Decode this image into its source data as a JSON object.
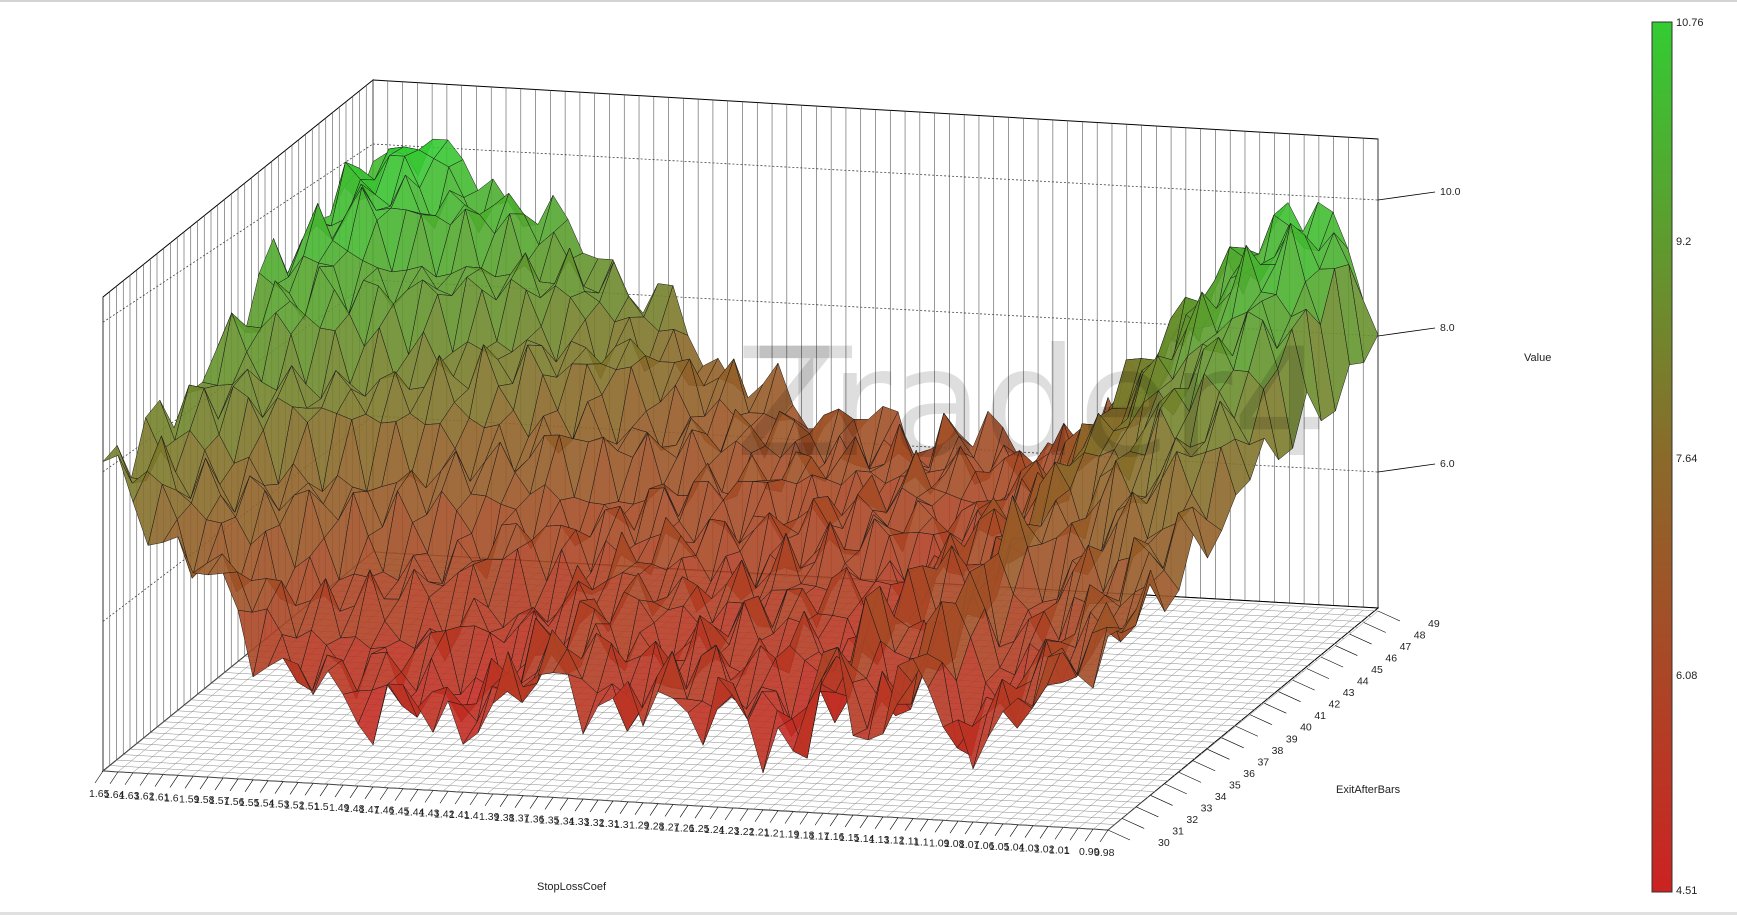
{
  "chart_data": {
    "type": "surface3d",
    "x_axis": {
      "label": "StopLossCoef",
      "ticks": [
        "1.65",
        "1.64",
        "1.63",
        "1.62",
        "1.61",
        "1.6",
        "1.59",
        "1.58",
        "1.57",
        "1.56",
        "1.55",
        "1.54",
        "1.53",
        "1.52",
        "1.51",
        "1.5",
        "1.49",
        "1.48",
        "1.47",
        "1.46",
        "1.45",
        "1.44",
        "1.43",
        "1.42",
        "1.41",
        "1.4",
        "1.39",
        "1.38",
        "1.37",
        "1.36",
        "1.35",
        "1.34",
        "1.33",
        "1.32",
        "1.31",
        "1.3",
        "1.29",
        "1.28",
        "1.27",
        "1.26",
        "1.25",
        "1.24",
        "1.23",
        "1.22",
        "1.21",
        "1.2",
        "1.19",
        "1.18",
        "1.17",
        "1.16",
        "1.15",
        "1.14",
        "1.13",
        "1.12",
        "1.11",
        "1.1",
        "1.09",
        "1.08",
        "1.07",
        "1.06",
        "1.05",
        "1.04",
        "1.03",
        "1.02",
        "1.01",
        "1",
        "0.99",
        "0.98"
      ]
    },
    "y_axis": {
      "label": "ExitAfterBars",
      "ticks": [
        "30",
        "31",
        "32",
        "33",
        "34",
        "35",
        "36",
        "37",
        "38",
        "39",
        "40",
        "41",
        "42",
        "43",
        "44",
        "45",
        "46",
        "47",
        "48",
        "49"
      ]
    },
    "z_axis": {
      "label": "Value",
      "ticks": [
        "6.0",
        "8.0",
        "10.0"
      ],
      "range": [
        4.51,
        10.76
      ]
    },
    "colorbar": {
      "labels": [
        "10.76",
        "9.2",
        "7.64",
        "6.08",
        "4.51"
      ],
      "low_color": "#cc2222",
      "mid_color": "#8a6a2a",
      "high_color": "#33cc33"
    },
    "profile_front": {
      "x_index": [
        0,
        2,
        4,
        6,
        8,
        10,
        12,
        14,
        16,
        18,
        20,
        22,
        24,
        26,
        28,
        30,
        32,
        34,
        36,
        38,
        40,
        42,
        44,
        46,
        48,
        50,
        52,
        54,
        56,
        58,
        60,
        62,
        64,
        66,
        67
      ],
      "value": [
        8.2,
        8.0,
        7.4,
        7.0,
        6.6,
        6.0,
        5.6,
        5.4,
        5.2,
        5.1,
        5.3,
        4.9,
        5.0,
        5.4,
        5.6,
        5.8,
        5.5,
        5.2,
        5.4,
        5.6,
        5.3,
        5.5,
        4.9,
        5.1,
        6.3,
        5.2,
        5.4,
        6.6,
        5.0,
        5.2,
        5.6,
        5.9,
        6.2,
        6.5,
        6.7
      ]
    },
    "profile_back": {
      "x_index": [
        0,
        2,
        4,
        6,
        8,
        10,
        12,
        14,
        16,
        18,
        20,
        22,
        24,
        26,
        28,
        30,
        32,
        34,
        36,
        38,
        40,
        42,
        44,
        46,
        48,
        50,
        52,
        54,
        56,
        58,
        60,
        62,
        64,
        66,
        67
      ],
      "value": [
        10.2,
        10.6,
        10.8,
        10.3,
        10.0,
        9.8,
        9.5,
        9.2,
        8.9,
        8.4,
        8.2,
        7.6,
        7.2,
        7.0,
        6.8,
        6.6,
        6.6,
        6.5,
        6.4,
        6.3,
        6.5,
        6.4,
        6.2,
        6.3,
        6.5,
        6.9,
        7.4,
        8.2,
        9.0,
        9.6,
        10.0,
        10.3,
        10.4,
        9.6,
        8.2
      ]
    }
  },
  "watermark": "Trader4",
  "watermark_prefix": "Z"
}
